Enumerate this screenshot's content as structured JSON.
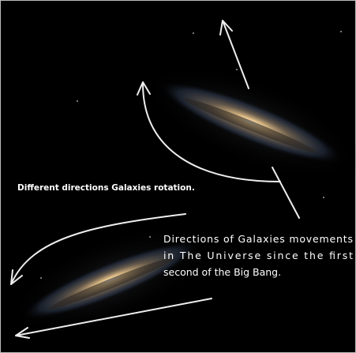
{
  "captions": {
    "rotation": "Different directions Galaxies rotation.",
    "movement": [
      "Directions of Galaxies movements",
      "in The Universe since the first",
      "second of the Big Bang."
    ]
  }
}
